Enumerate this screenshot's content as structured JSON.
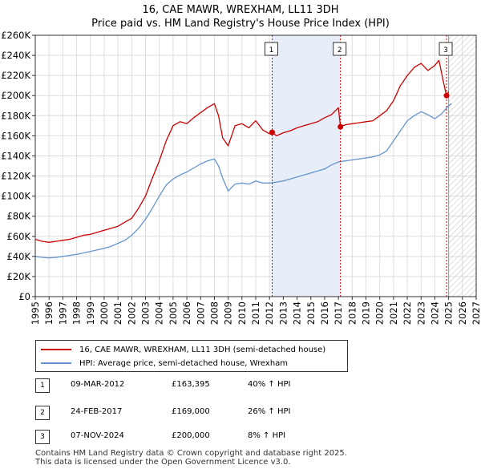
{
  "title_line1": "16, CAE MAWR, WREXHAM, LL11 3DH",
  "title_line2": "Price paid vs. HM Land Registry's House Price Index (HPI)",
  "chart_data": {
    "type": "line",
    "xlim": [
      1995,
      2027
    ],
    "ylim": [
      0,
      260000
    ],
    "x_ticks": [
      1995,
      1996,
      1997,
      1998,
      1999,
      2000,
      2001,
      2002,
      2003,
      2004,
      2005,
      2006,
      2007,
      2008,
      2009,
      2010,
      2011,
      2012,
      2013,
      2014,
      2015,
      2016,
      2017,
      2018,
      2019,
      2020,
      2021,
      2022,
      2023,
      2024,
      2025,
      2026,
      2027
    ],
    "y_ticks": [
      0,
      20000,
      40000,
      60000,
      80000,
      100000,
      120000,
      140000,
      160000,
      180000,
      200000,
      220000,
      240000,
      260000
    ],
    "y_tick_labels": [
      "£0",
      "£20K",
      "£40K",
      "£60K",
      "£80K",
      "£100K",
      "£120K",
      "£140K",
      "£160K",
      "£180K",
      "£200K",
      "£220K",
      "£240K",
      "£260K"
    ],
    "shaded_ranges": [
      [
        2012.19,
        2017.15
      ]
    ],
    "forecast_from": 2025.0,
    "series": [
      {
        "name": "16, CAE MAWR, WREXHAM, LL11 3DH (semi-detached house)",
        "color": "#cc0000",
        "x": [
          1995.0,
          1995.5,
          1996.0,
          1996.5,
          1997.0,
          1997.5,
          1998.0,
          1998.5,
          1999.0,
          1999.5,
          2000.0,
          2000.5,
          2001.0,
          2001.5,
          2002.0,
          2002.5,
          2003.0,
          2003.5,
          2004.0,
          2004.5,
          2005.0,
          2005.5,
          2006.0,
          2006.5,
          2007.0,
          2007.5,
          2008.0,
          2008.3,
          2008.6,
          2009.0,
          2009.5,
          2010.0,
          2010.5,
          2011.0,
          2011.5,
          2012.0,
          2012.19,
          2012.5,
          2013.0,
          2013.5,
          2014.0,
          2014.5,
          2015.0,
          2015.5,
          2016.0,
          2016.5,
          2017.0,
          2017.15,
          2017.5,
          2018.0,
          2018.5,
          2019.0,
          2019.5,
          2020.0,
          2020.5,
          2021.0,
          2021.5,
          2022.0,
          2022.5,
          2023.0,
          2023.5,
          2024.0,
          2024.3,
          2024.6,
          2024.85,
          2025.0
        ],
        "y": [
          57000,
          55000,
          54000,
          55000,
          56000,
          57000,
          59000,
          61000,
          62000,
          64000,
          66000,
          68000,
          70000,
          74000,
          78000,
          88000,
          100000,
          118000,
          135000,
          155000,
          170000,
          174000,
          172000,
          178000,
          183000,
          188000,
          192000,
          180000,
          158000,
          150000,
          170000,
          172000,
          168000,
          175000,
          166000,
          162000,
          163395,
          160000,
          163000,
          165000,
          168000,
          170000,
          172000,
          174000,
          178000,
          181000,
          188000,
          169000,
          171000,
          172000,
          173000,
          174000,
          175000,
          180000,
          185000,
          195000,
          210000,
          220000,
          228000,
          232000,
          225000,
          230000,
          235000,
          215000,
          200000,
          204000
        ]
      },
      {
        "name": "HPI: Average price, semi-detached house, Wrexham",
        "color": "#6495cd",
        "x": [
          1995.0,
          1995.5,
          1996.0,
          1996.5,
          1997.0,
          1997.5,
          1998.0,
          1998.5,
          1999.0,
          1999.5,
          2000.0,
          2000.5,
          2001.0,
          2001.5,
          2002.0,
          2002.5,
          2003.0,
          2003.5,
          2004.0,
          2004.5,
          2005.0,
          2005.5,
          2006.0,
          2006.5,
          2007.0,
          2007.5,
          2008.0,
          2008.3,
          2008.6,
          2009.0,
          2009.5,
          2010.0,
          2010.5,
          2011.0,
          2011.5,
          2012.0,
          2012.5,
          2013.0,
          2013.5,
          2014.0,
          2014.5,
          2015.0,
          2015.5,
          2016.0,
          2016.5,
          2017.0,
          2017.5,
          2018.0,
          2018.5,
          2019.0,
          2019.5,
          2020.0,
          2020.5,
          2021.0,
          2021.5,
          2022.0,
          2022.5,
          2023.0,
          2023.5,
          2024.0,
          2024.5,
          2025.0,
          2025.2
        ],
        "y": [
          40000,
          39000,
          38500,
          39000,
          40000,
          41000,
          42000,
          43500,
          45000,
          46500,
          48000,
          50000,
          53000,
          56000,
          61000,
          68000,
          77000,
          88000,
          100000,
          111000,
          117000,
          121000,
          124000,
          128000,
          132000,
          135000,
          137000,
          130000,
          118000,
          105000,
          112000,
          113000,
          112000,
          115000,
          113000,
          113000,
          114000,
          115000,
          117000,
          119000,
          121000,
          123000,
          125000,
          127000,
          131000,
          134000,
          135000,
          136000,
          137000,
          138000,
          139000,
          141000,
          145000,
          155000,
          165000,
          175000,
          180000,
          184000,
          181000,
          177000,
          182000,
          190000,
          192000
        ]
      }
    ],
    "sales": [
      {
        "label": "1",
        "x": 2012.19,
        "y": 163395
      },
      {
        "label": "2",
        "x": 2017.15,
        "y": 169000
      },
      {
        "label": "3",
        "x": 2024.85,
        "y": 200000
      }
    ]
  },
  "legend": {
    "property_label": "16, CAE MAWR, WREXHAM, LL11 3DH (semi-detached house)",
    "hpi_label": "HPI: Average price, semi-detached house, Wrexham"
  },
  "transactions": [
    {
      "num": "1",
      "date": "09-MAR-2012",
      "price": "£163,395",
      "hpi": "40% ↑ HPI"
    },
    {
      "num": "2",
      "date": "24-FEB-2017",
      "price": "£169,000",
      "hpi": "26% ↑ HPI"
    },
    {
      "num": "3",
      "date": "07-NOV-2024",
      "price": "£200,000",
      "hpi": "8% ↑ HPI"
    }
  ],
  "footer_line1": "Contains HM Land Registry data © Crown copyright and database right 2025.",
  "footer_line2": "This data is licensed under the Open Government Licence v3.0.",
  "colors": {
    "property": "#cc0000",
    "hpi": "#6495cd",
    "shade": "#e8eef9"
  }
}
